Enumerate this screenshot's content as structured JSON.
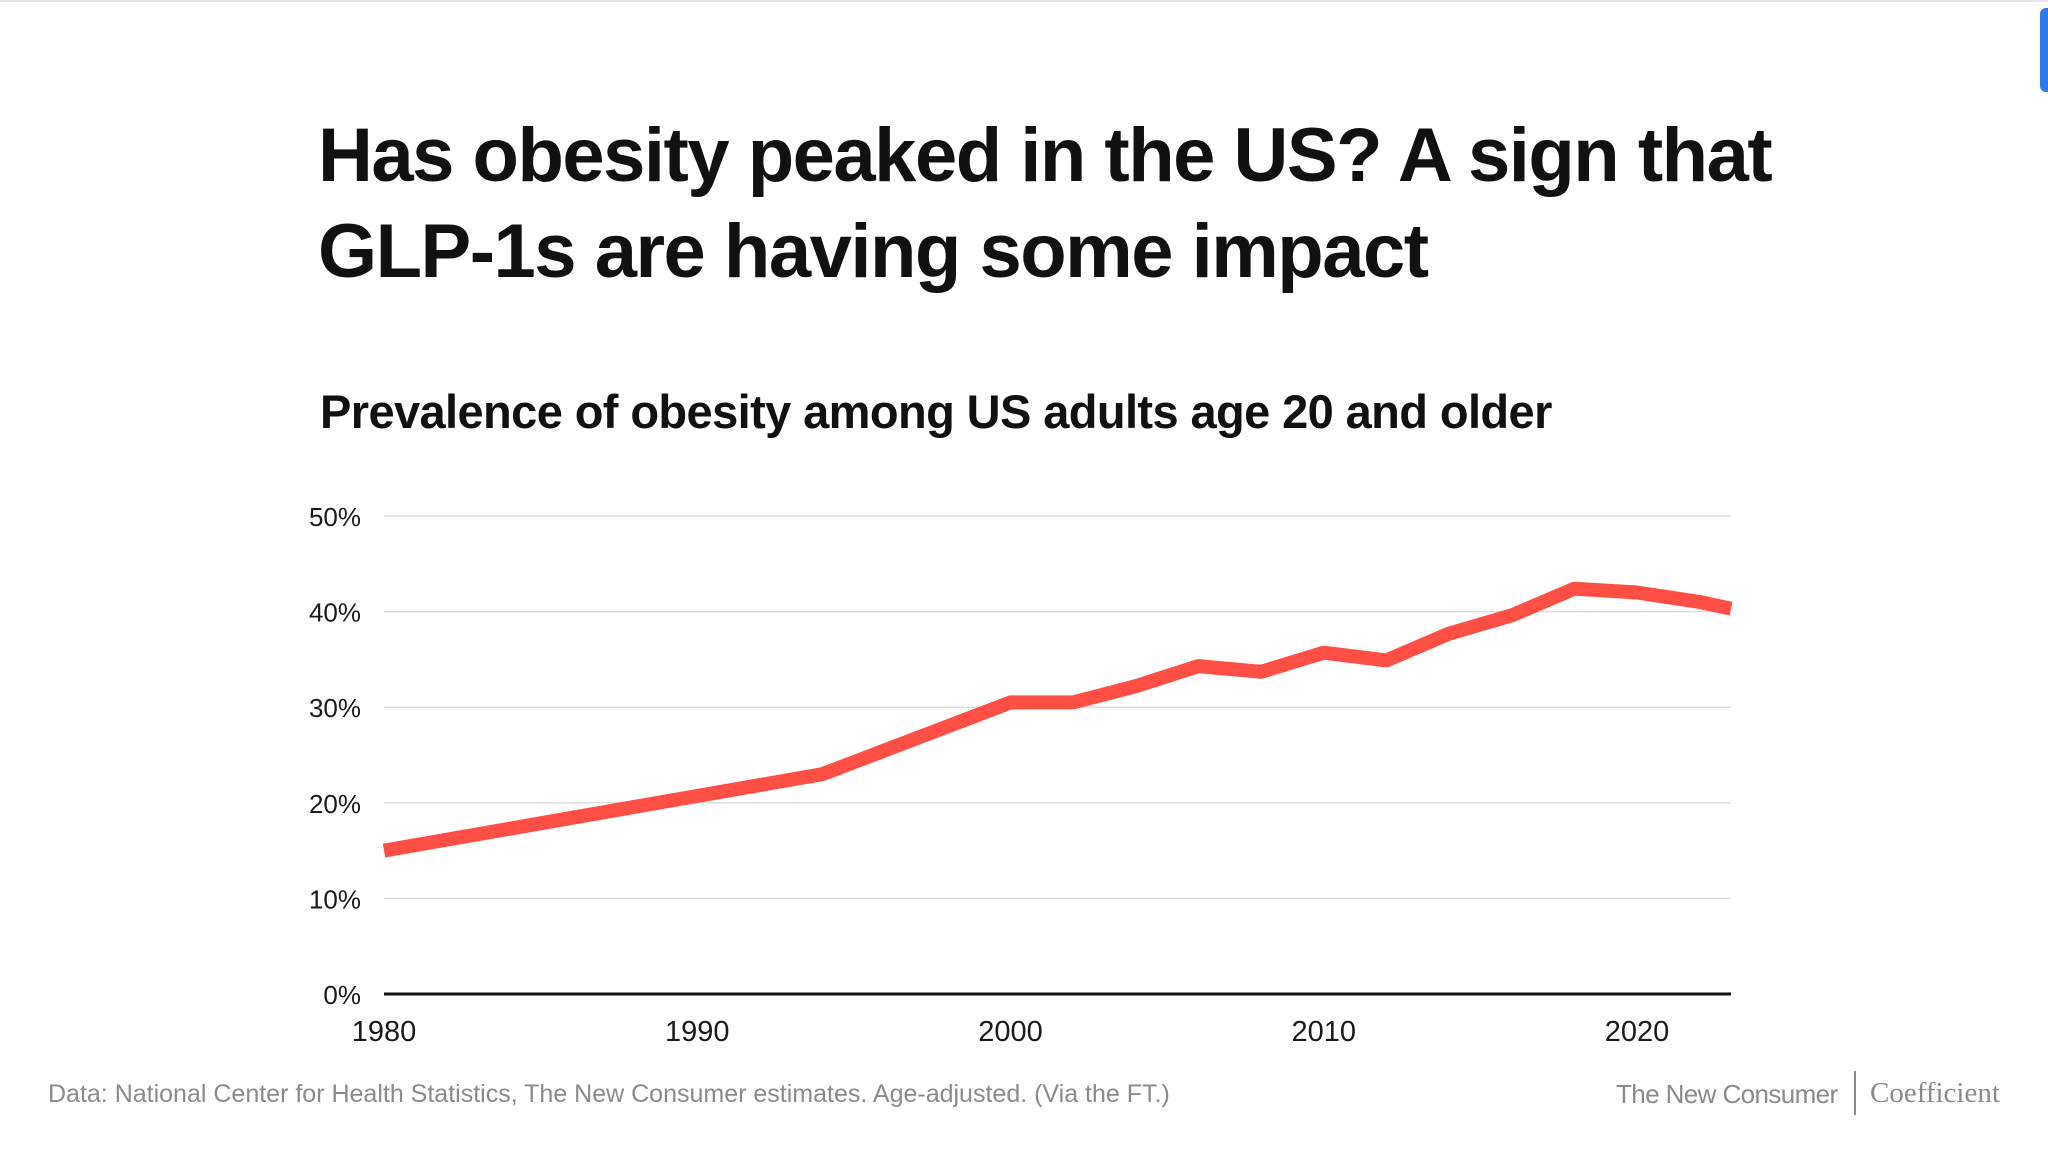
{
  "title": "Has obesity peaked in the US? A sign that GLP-1s are having some impact",
  "chart_data": {
    "type": "line",
    "title": "Prevalence of obesity among US adults age 20 and older",
    "xlabel": "",
    "ylabel": "",
    "xlim": [
      1980,
      2023
    ],
    "ylim": [
      0,
      50
    ],
    "x_ticks": [
      "1980",
      "1990",
      "2000",
      "2010",
      "2020"
    ],
    "y_ticks": [
      "0%",
      "10%",
      "20%",
      "30%",
      "40%",
      "50%"
    ],
    "grid": true,
    "legend": "none",
    "series": [
      {
        "color": "#ff4f45",
        "x": [
          1980,
          1994,
          2000,
          2002,
          2004,
          2006,
          2008,
          2010,
          2012,
          2014,
          2016,
          2018,
          2020,
          2022,
          2023
        ],
        "y": [
          15.0,
          23.0,
          30.5,
          30.5,
          32.2,
          34.3,
          33.7,
          35.7,
          34.9,
          37.7,
          39.6,
          42.4,
          42.0,
          41.0,
          40.3
        ]
      }
    ]
  },
  "footer": {
    "source": "Data: National Center for Health Statistics, The New Consumer estimates. Age-adjusted. (Via the FT.)",
    "brand": "The New Consumer",
    "partner": "Coefficient"
  }
}
